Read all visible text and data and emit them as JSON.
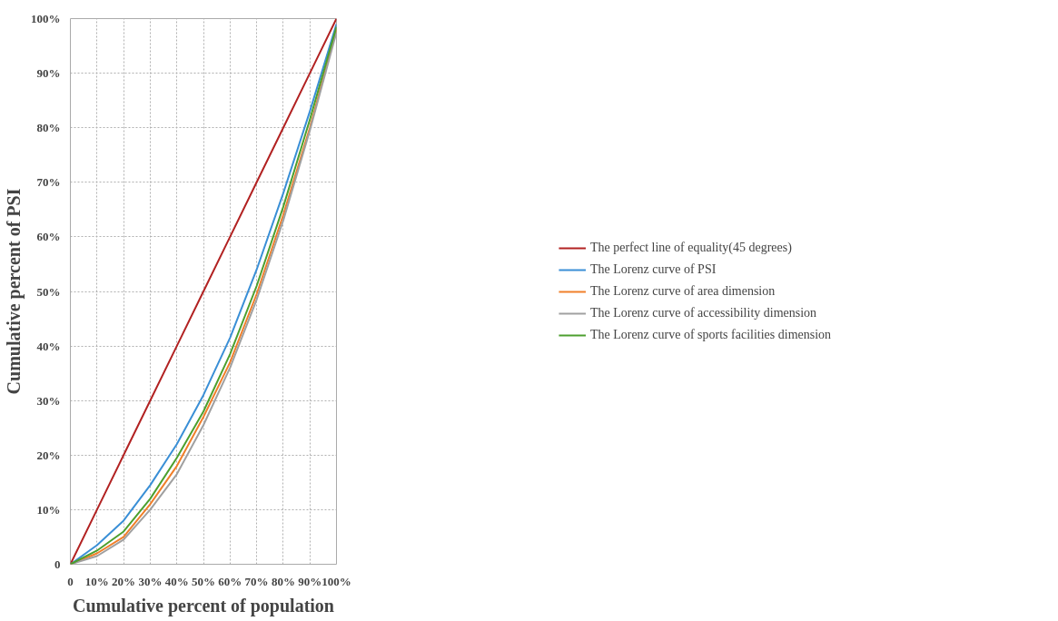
{
  "chart_data": {
    "type": "line",
    "xlabel": "Cumulative percent of population",
    "ylabel": "Cumulative percent of PSI",
    "xlim": [
      0,
      100
    ],
    "ylim": [
      0,
      100
    ],
    "xticks": [
      0,
      {
        "value": 10,
        "label": "10%"
      },
      {
        "value": 20,
        "label": "20%"
      },
      {
        "value": 30,
        "label": "30%"
      },
      {
        "value": 40,
        "label": "40%"
      },
      {
        "value": 50,
        "label": "50%"
      },
      {
        "value": 60,
        "label": "60%"
      },
      {
        "value": 70,
        "label": "70%"
      },
      {
        "value": 80,
        "label": "80%"
      },
      {
        "value": 90,
        "label": "90%"
      },
      {
        "value": 100,
        "label": "100%"
      }
    ],
    "yticks": [
      0,
      {
        "value": 10,
        "label": "10%"
      },
      {
        "value": 20,
        "label": "20%"
      },
      {
        "value": 30,
        "label": "30%"
      },
      {
        "value": 40,
        "label": "40%"
      },
      {
        "value": 50,
        "label": "50%"
      },
      {
        "value": 60,
        "label": "60%"
      },
      {
        "value": 70,
        "label": "70%"
      },
      {
        "value": 80,
        "label": "80%"
      },
      {
        "value": 90,
        "label": "90%"
      },
      {
        "value": 100,
        "label": "100%"
      }
    ],
    "grid": true,
    "legend": "right",
    "marker": "none",
    "line_style": "solid",
    "x": [
      0,
      10,
      20,
      30,
      40,
      50,
      60,
      70,
      80,
      90,
      100
    ],
    "series": [
      {
        "name": "The perfect line of equality(45 degrees)",
        "color": "#b22222",
        "values": [
          0,
          10,
          20,
          30,
          40,
          50,
          60,
          70,
          80,
          90,
          100
        ]
      },
      {
        "name": "The Lorenz curve of PSI",
        "color": "#3a8fd6",
        "values": [
          0,
          3.5,
          8,
          14.5,
          22,
          31,
          41.5,
          54,
          68,
          83,
          99
        ]
      },
      {
        "name": "The Lorenz curve of area dimension",
        "color": "#f07f2a",
        "values": [
          0,
          2,
          5,
          11,
          18,
          27,
          37,
          49.5,
          64,
          80,
          98
        ]
      },
      {
        "name": "The Lorenz curve of accessibility dimension",
        "color": "#a0a0a0",
        "values": [
          0,
          1.5,
          4.5,
          10,
          16.5,
          25.5,
          36,
          48.5,
          63,
          79.5,
          97.5
        ]
      },
      {
        "name": "The Lorenz curve of sports facilities dimension",
        "color": "#4c9f2e",
        "values": [
          0,
          2.5,
          6,
          12,
          19.5,
          28,
          38.5,
          51,
          65.5,
          81.5,
          98.5
        ]
      }
    ]
  }
}
